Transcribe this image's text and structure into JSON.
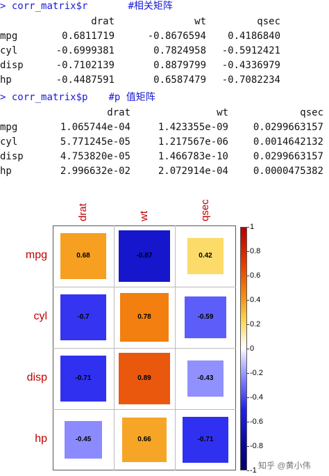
{
  "console": {
    "cmd1": {
      "prompt": ">",
      "text": "corr_matrix$r",
      "comment": "#相关矩阵"
    },
    "table1": {
      "headers": [
        "drat",
        "wt",
        "qsec"
      ],
      "rows": [
        {
          "name": "mpg",
          "cells": [
            "0.6811719",
            "-0.8676594",
            "0.4186840"
          ]
        },
        {
          "name": "cyl",
          "cells": [
            "-0.6999381",
            "0.7824958",
            "-0.5912421"
          ]
        },
        {
          "name": "disp",
          "cells": [
            "-0.7102139",
            "0.8879799",
            "-0.4336979"
          ]
        },
        {
          "name": "hp",
          "cells": [
            "-0.4487591",
            "0.6587479",
            "-0.7082234"
          ]
        }
      ]
    },
    "cmd2": {
      "prompt": ">",
      "text": "corr_matrix$p",
      "comment": "#p 值矩阵"
    },
    "table2": {
      "headers": [
        "drat",
        "wt",
        "qsec"
      ],
      "rows": [
        {
          "name": "mpg",
          "cells": [
            "1.065744e-04",
            "1.423355e-09",
            "0.0299663157"
          ]
        },
        {
          "name": "cyl",
          "cells": [
            "5.771245e-05",
            "1.217567e-06",
            "0.0014642132"
          ]
        },
        {
          "name": "disp",
          "cells": [
            "4.753820e-05",
            "1.466783e-10",
            "0.0299663157"
          ]
        },
        {
          "name": "hp",
          "cells": [
            "2.996632e-02",
            "2.072914e-04",
            "0.0000475382"
          ]
        }
      ]
    }
  },
  "chart_data": {
    "type": "heatmap",
    "x_labels": [
      "drat",
      "wt",
      "qsec"
    ],
    "y_labels": [
      "mpg",
      "cyl",
      "disp",
      "hp"
    ],
    "values": [
      [
        0.68,
        -0.87,
        0.42
      ],
      [
        -0.7,
        0.78,
        -0.59
      ],
      [
        -0.71,
        0.89,
        -0.43
      ],
      [
        -0.45,
        0.66,
        -0.71
      ]
    ],
    "value_labels": [
      [
        "0.68",
        "-0.87",
        "0.42"
      ],
      [
        "-0.7",
        "0.78",
        "-0.59"
      ],
      [
        "-0.71",
        "0.89",
        "-0.43"
      ],
      [
        "-0.45",
        "0.66",
        "-0.71"
      ]
    ],
    "colorbar": {
      "range": [
        -1,
        1
      ],
      "ticks": [
        "1",
        "0.8",
        "0.6",
        "0.4",
        "0.2",
        "0",
        "-0.2",
        "-0.4",
        "-0.6",
        "-0.8",
        "-1"
      ]
    },
    "colors": {
      "high": "#b50000",
      "mid_high": "#f48a10",
      "mid": "#ffffff",
      "mid_low": "#2121ee",
      "low": "#00006e"
    }
  },
  "watermark": "知乎 @黄小伟"
}
